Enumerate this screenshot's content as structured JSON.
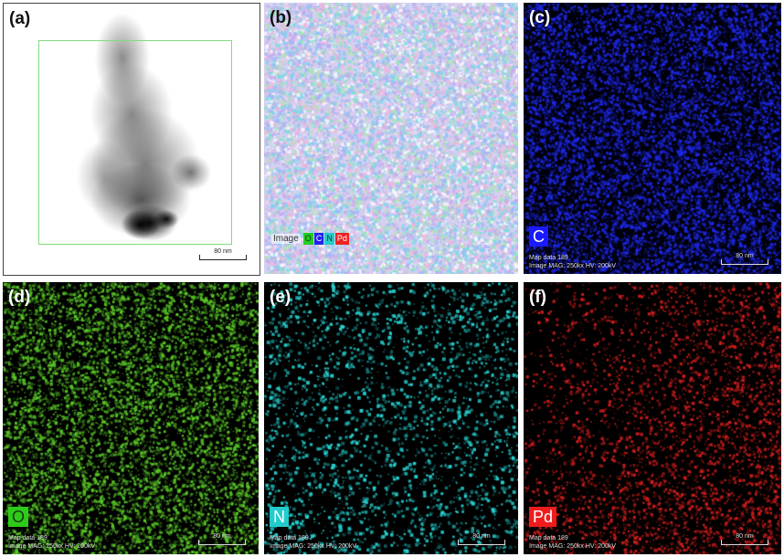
{
  "panels": [
    {
      "label": "(a)",
      "scale_bar": "80 nm"
    },
    {
      "label": "(b)",
      "legend_label": "Image",
      "legend_items": [
        {
          "text": "O",
          "color": "#22cc22"
        },
        {
          "text": "C",
          "color": "#2222ee"
        },
        {
          "text": "N",
          "color": "#22cccc"
        },
        {
          "text": "Pd",
          "color": "#ee2222"
        }
      ]
    },
    {
      "label": "(c)",
      "element": "C",
      "element_color": "#1a1aff",
      "map_text": "Map data 189",
      "image_text": "Image  MAG: 250kx  HV: 200kV",
      "scale_bar": "80 nm"
    },
    {
      "label": "(d)",
      "element": "O",
      "element_color": "#2ecc1a",
      "map_text": "Map data 189",
      "image_text": "Image  MAG: 250kx  HV: 200kV",
      "scale_bar": "80 nm"
    },
    {
      "label": "(e)",
      "element": "N",
      "element_color": "#22cccc",
      "map_text": "Map data 189",
      "image_text": "Image  MAG: 250kx  HV: 200kV",
      "scale_bar": "80 nm"
    },
    {
      "label": "(f)",
      "element": "Pd",
      "element_color": "#ee1c1c",
      "map_text": "Map data 189",
      "image_text": "Image  MAG: 250kx  HV: 200kV",
      "scale_bar": "80 nm"
    }
  ]
}
